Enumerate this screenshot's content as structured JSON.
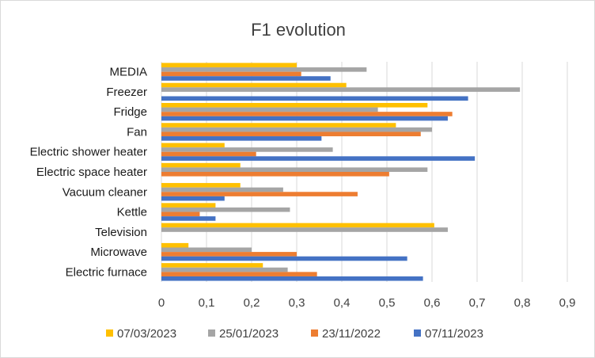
{
  "chart_data": {
    "type": "bar",
    "orientation": "horizontal",
    "title": "F1 evolution",
    "xlabel": "",
    "ylabel": "",
    "xlim": [
      0,
      0.9
    ],
    "x_ticks": [
      "0",
      "0,1",
      "0,2",
      "0,3",
      "0,4",
      "0,5",
      "0,6",
      "0,7",
      "0,8",
      "0,9"
    ],
    "grid": "vertical",
    "legend_position": "bottom",
    "categories": [
      "MEDIA",
      "Freezer",
      "Fridge",
      "Fan",
      "Electric shower heater",
      "Electric space heater",
      "Vacuum cleaner",
      "Kettle",
      "Television",
      "Microwave",
      "Electric furnace"
    ],
    "series": [
      {
        "name": "07/03/2023",
        "color": "#FFC000",
        "values": [
          0.3,
          0.41,
          0.59,
          0.52,
          0.14,
          0.175,
          0.175,
          0.12,
          0.605,
          0.06,
          0.225
        ]
      },
      {
        "name": "25/01/2023",
        "color": "#A5A5A5",
        "values": [
          0.455,
          0.795,
          0.48,
          0.6,
          0.38,
          0.59,
          0.27,
          0.285,
          0.635,
          0.2,
          0.28
        ]
      },
      {
        "name": "23/11/2022",
        "color": "#ED7D31",
        "values": [
          0.31,
          0,
          0.645,
          0.575,
          0.21,
          0.505,
          0.435,
          0.085,
          0,
          0.3,
          0.345
        ]
      },
      {
        "name": "07/11/2023",
        "color": "#4472C4",
        "values": [
          0.375,
          0.68,
          0.635,
          0.355,
          0.695,
          0,
          0.14,
          0.12,
          0,
          0.545,
          0.58
        ]
      }
    ]
  }
}
